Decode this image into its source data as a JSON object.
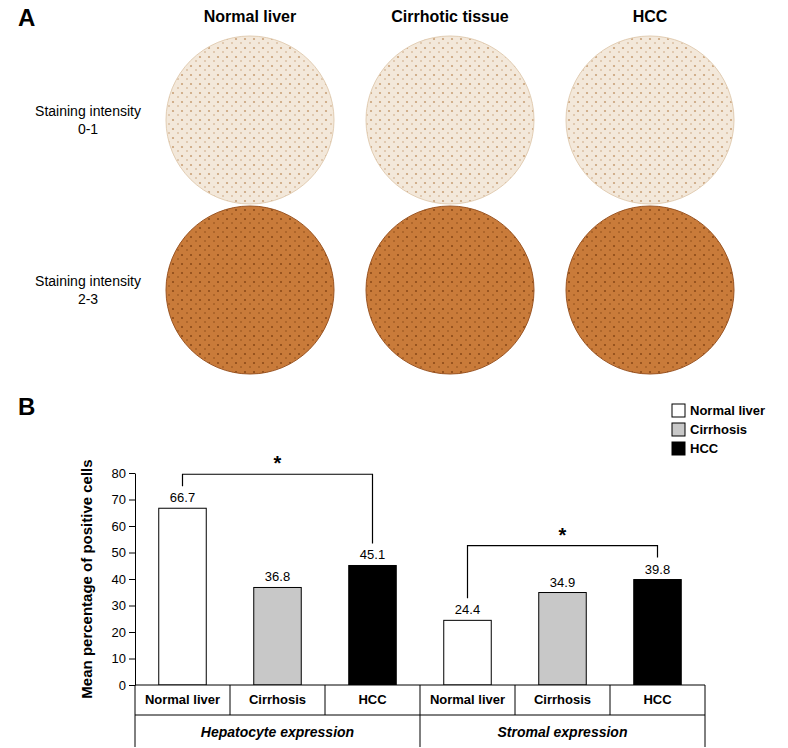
{
  "panel_a": {
    "label": "A",
    "columns": [
      "Normal liver",
      "Cirrhotic tissue",
      "HCC"
    ],
    "rows": [
      {
        "lines": [
          "Staining intensity",
          "0-1"
        ]
      },
      {
        "lines": [
          "Staining intensity",
          "2-3"
        ]
      }
    ]
  },
  "chart_data": {
    "type": "bar",
    "panel_label": "B",
    "y_label": "Mean percentage of positive cells",
    "categories": [
      "Hepatocyte expression",
      "Stromal expression"
    ],
    "series": [
      {
        "name": "Normal liver",
        "color": "#ffffff",
        "values": [
          66.7,
          24.4
        ]
      },
      {
        "name": "Cirrhosis",
        "color": "#c8c8c8",
        "values": [
          36.8,
          34.9
        ]
      },
      {
        "name": "HCC",
        "color": "#000000",
        "values": [
          45.1,
          39.8
        ]
      }
    ],
    "ylim": [
      0,
      80
    ],
    "yticks": [
      0,
      10,
      20,
      30,
      40,
      50,
      60,
      70,
      80
    ],
    "grid": false,
    "legend": "upper right",
    "data_labels": true,
    "annotations": [
      {
        "text": "*",
        "category": 0,
        "series": [
          0,
          2
        ]
      },
      {
        "text": "*",
        "category": 1,
        "series": [
          0,
          2
        ]
      }
    ]
  }
}
